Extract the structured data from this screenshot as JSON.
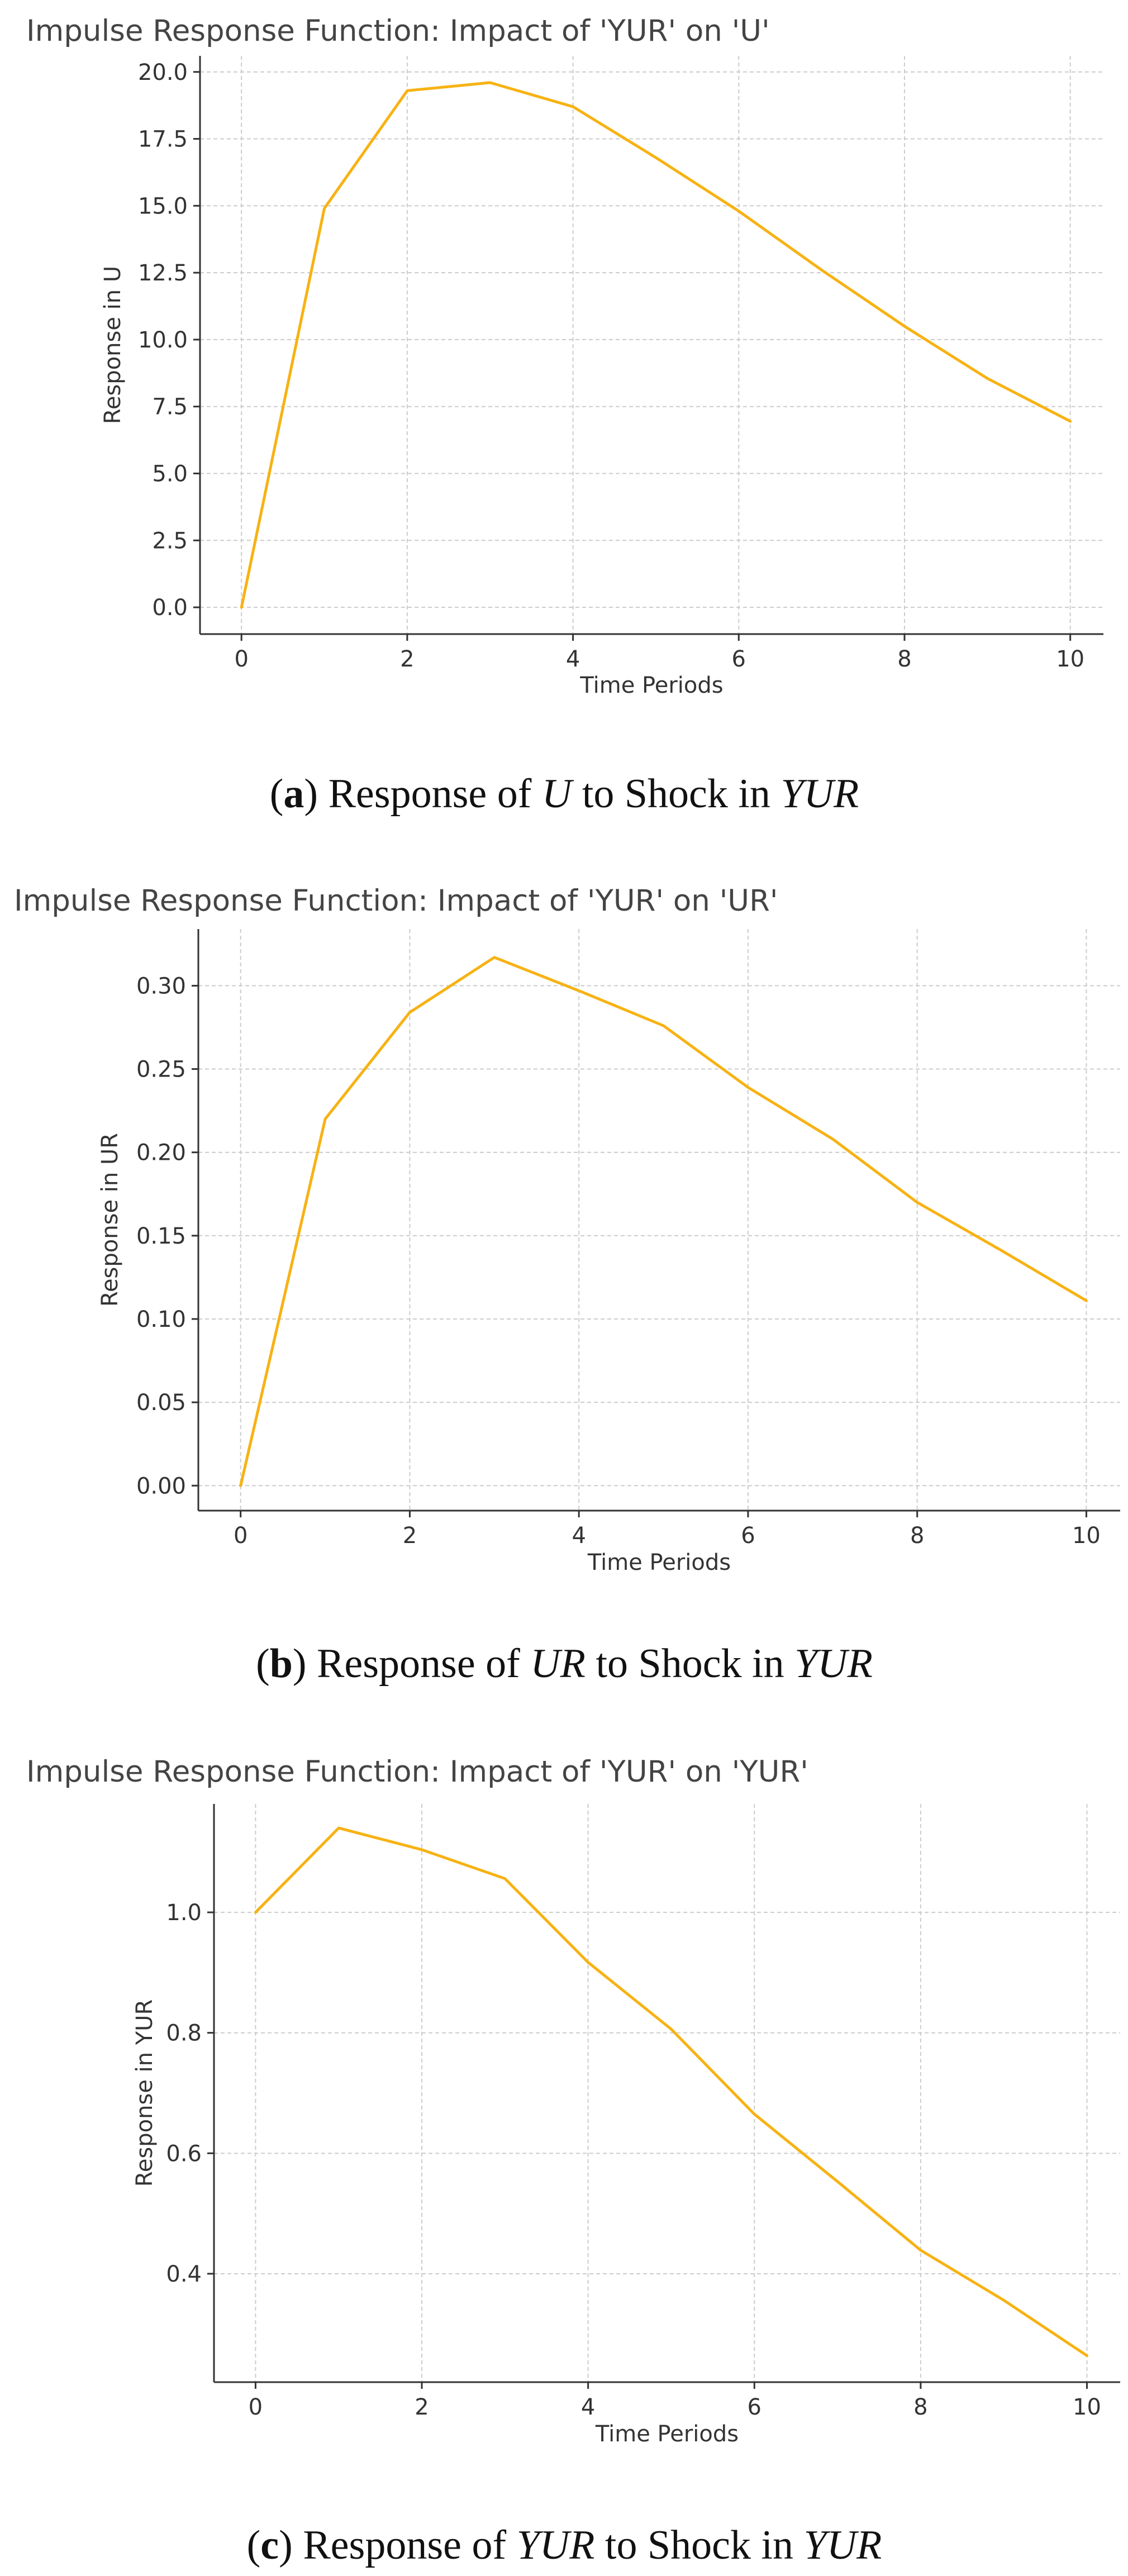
{
  "chart_data": [
    {
      "type": "line",
      "title": "Impulse Response Function: Impact of 'YUR' on 'U'",
      "xlabel": "Time Periods",
      "ylabel": "Response in U",
      "x": [
        0,
        1,
        2,
        3,
        4,
        5,
        6,
        7,
        8,
        9,
        10
      ],
      "series": [
        {
          "values": [
            0.0,
            14.9,
            19.3,
            19.6,
            18.7,
            16.8,
            14.8,
            12.6,
            10.5,
            8.55,
            6.95
          ]
        }
      ],
      "xlim": [
        -0.5,
        10.4
      ],
      "ylim": [
        -1.0,
        20.6
      ],
      "xticks": [
        0,
        2,
        4,
        6,
        8,
        10
      ],
      "yticks": [
        0.0,
        2.5,
        5.0,
        7.5,
        10.0,
        12.5,
        15.0,
        17.5,
        20.0
      ],
      "ytick_labels": [
        "0.0",
        "2.5",
        "5.0",
        "7.5",
        "10.0",
        "12.5",
        "15.0",
        "17.5",
        "20.0"
      ],
      "grid": true,
      "color": "#f7b213",
      "caption": {
        "letter": "a",
        "prefix": "Response of ",
        "var1": "U",
        "middle": " to Shock in ",
        "var2": "YUR"
      }
    },
    {
      "type": "line",
      "title": "Impulse Response Function: Impact of 'YUR' on 'UR'",
      "xlabel": "Time Periods",
      "ylabel": "Response in UR",
      "x": [
        0,
        1,
        2,
        3,
        4,
        5,
        6,
        7,
        8,
        9,
        10
      ],
      "series": [
        {
          "values": [
            0.0,
            0.22,
            0.284,
            0.317,
            0.297,
            0.276,
            0.239,
            0.208,
            0.17,
            0.141,
            0.111
          ]
        }
      ],
      "xlim": [
        -0.5,
        10.4
      ],
      "ylim": [
        -0.015,
        0.334
      ],
      "xticks": [
        0,
        2,
        4,
        6,
        8,
        10
      ],
      "yticks": [
        0.0,
        0.05,
        0.1,
        0.15,
        0.2,
        0.25,
        0.3
      ],
      "ytick_labels": [
        "0.00",
        "0.05",
        "0.10",
        "0.15",
        "0.20",
        "0.25",
        "0.30"
      ],
      "grid": true,
      "color": "#f7b213",
      "caption": {
        "letter": "b",
        "prefix": "Response of ",
        "var1": "UR",
        "middle": " to Shock in ",
        "var2": "YUR"
      }
    },
    {
      "type": "line",
      "title": "Impulse Response Function: Impact of 'YUR' on 'YUR'",
      "xlabel": "Time Periods",
      "ylabel": "Response in YUR",
      "x": [
        0,
        1,
        2,
        3,
        4,
        5,
        6,
        7,
        8,
        9,
        10
      ],
      "series": [
        {
          "values": [
            1.0,
            1.14,
            1.104,
            1.056,
            0.917,
            0.806,
            0.665,
            0.553,
            0.439,
            0.356,
            0.264
          ]
        }
      ],
      "xlim": [
        -0.5,
        10.4
      ],
      "ylim": [
        0.22,
        1.18
      ],
      "xticks": [
        0,
        2,
        4,
        6,
        8,
        10
      ],
      "yticks": [
        0.4,
        0.6,
        0.8,
        1.0
      ],
      "ytick_labels": [
        "0.4",
        "0.6",
        "0.8",
        "1.0"
      ],
      "grid": true,
      "color": "#f7b213",
      "caption": {
        "letter": "c",
        "prefix": "Response of ",
        "var1": "YUR",
        "middle": " to Shock in ",
        "var2": "YUR"
      }
    }
  ]
}
